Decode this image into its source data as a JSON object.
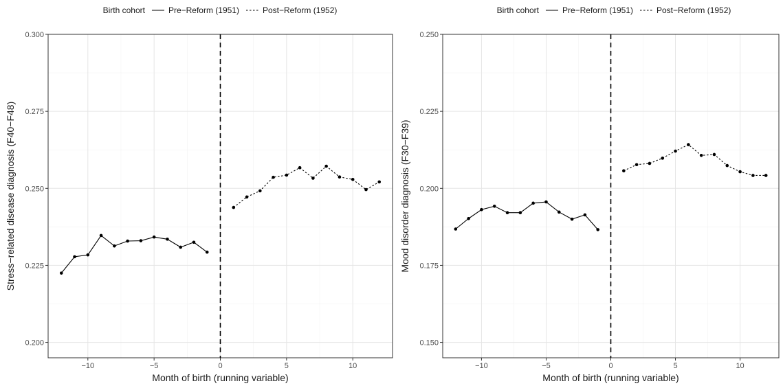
{
  "chart_data": [
    {
      "type": "line",
      "legend": {
        "title": "Birth cohort",
        "position": "top",
        "entries": [
          {
            "label": "Pre−Reform (1951)",
            "linestyle": "solid"
          },
          {
            "label": "Post−Reform (1952)",
            "linestyle": "dotted"
          }
        ]
      },
      "xlabel": "Month of birth (running variable)",
      "ylabel": "Stress−related disease diagnosis (F40−F48)",
      "xlim": [
        -13,
        13
      ],
      "ylim": [
        0.195,
        0.3
      ],
      "xticks": [
        -10,
        -5,
        0,
        5,
        10
      ],
      "xtick_labels": [
        "−10",
        "−5",
        "0",
        "5",
        "10"
      ],
      "yticks": [
        0.2,
        0.225,
        0.25,
        0.275,
        0.3
      ],
      "ytick_labels": [
        "0.200",
        "0.225",
        "0.250",
        "0.275",
        "0.300"
      ],
      "cutoff": 0,
      "grid": true,
      "series": [
        {
          "name": "Pre−Reform (1951)",
          "linestyle": "solid",
          "x": [
            -12,
            -11,
            -10,
            -9,
            -8,
            -7,
            -6,
            -5,
            -4,
            -3,
            -2,
            -1
          ],
          "y": [
            0.2225,
            0.2278,
            0.2284,
            0.2347,
            0.2313,
            0.2329,
            0.233,
            0.2342,
            0.2335,
            0.2309,
            0.2325,
            0.2293
          ]
        },
        {
          "name": "Post−Reform (1952)",
          "linestyle": "dotted",
          "x": [
            1,
            2,
            3,
            4,
            5,
            6,
            7,
            8,
            9,
            10,
            11,
            12
          ],
          "y": [
            0.2438,
            0.2472,
            0.2492,
            0.2536,
            0.2543,
            0.2567,
            0.2533,
            0.2572,
            0.2537,
            0.2529,
            0.2496,
            0.2521
          ]
        }
      ]
    },
    {
      "type": "line",
      "legend": {
        "title": "Birth cohort",
        "position": "top",
        "entries": [
          {
            "label": "Pre−Reform (1951)",
            "linestyle": "solid"
          },
          {
            "label": "Post−Reform (1952)",
            "linestyle": "dotted"
          }
        ]
      },
      "xlabel": "Month of birth (running variable)",
      "ylabel": "Mood disorder diagnosis (F30−F39)",
      "xlim": [
        -13,
        13
      ],
      "ylim": [
        0.145,
        0.25
      ],
      "xticks": [
        -10,
        -5,
        0,
        5,
        10
      ],
      "xtick_labels": [
        "−10",
        "−5",
        "0",
        "5",
        "10"
      ],
      "yticks": [
        0.15,
        0.175,
        0.2,
        0.225,
        0.25
      ],
      "ytick_labels": [
        "0.150",
        "0.175",
        "0.200",
        "0.225",
        "0.250"
      ],
      "cutoff": 0,
      "grid": true,
      "series": [
        {
          "name": "Pre−Reform (1951)",
          "linestyle": "solid",
          "x": [
            -12,
            -11,
            -10,
            -9,
            -8,
            -7,
            -6,
            -5,
            -4,
            -3,
            -2,
            -1
          ],
          "y": [
            0.1868,
            0.1902,
            0.1931,
            0.1942,
            0.1921,
            0.1921,
            0.1952,
            0.1956,
            0.1923,
            0.19,
            0.1914,
            0.1866
          ]
        },
        {
          "name": "Post−Reform (1952)",
          "linestyle": "dotted",
          "x": [
            1,
            2,
            3,
            4,
            5,
            6,
            7,
            8,
            9,
            10,
            11,
            12
          ],
          "y": [
            0.2057,
            0.2077,
            0.2081,
            0.2098,
            0.2121,
            0.2142,
            0.2107,
            0.211,
            0.2074,
            0.2054,
            0.2042,
            0.2042
          ]
        }
      ]
    }
  ]
}
